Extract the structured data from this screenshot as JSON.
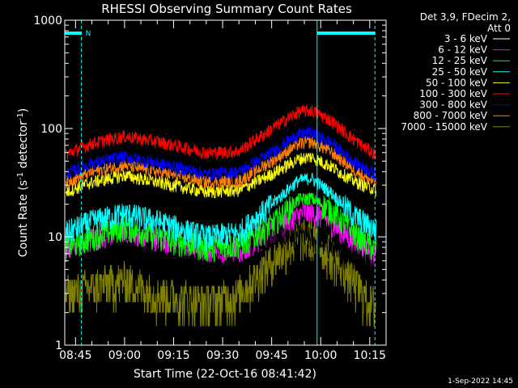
{
  "chart_data": {
    "type": "line",
    "title": "RHESSI Observing Summary Count Rates",
    "xlabel": "Start Time (22-Oct-16 08:41:42)",
    "ylabel_main": "Count Rate (s",
    "ylabel_sup1": "-1",
    "ylabel_mid": " detector",
    "ylabel_sup2": "-1",
    "ylabel_end": ")",
    "yscale": "log",
    "ylim": [
      1,
      1000
    ],
    "xlim_minutes": [
      -3.3,
      95.0
    ],
    "x_ticks": [
      {
        "label": "08:45",
        "t": 0
      },
      {
        "label": "09:00",
        "t": 15
      },
      {
        "label": "09:15",
        "t": 30
      },
      {
        "label": "09:30",
        "t": 45
      },
      {
        "label": "09:45",
        "t": 60
      },
      {
        "label": "10:00",
        "t": 75
      },
      {
        "label": "10:15",
        "t": 90
      }
    ],
    "y_ticks": [
      {
        "label": "1",
        "v": 1
      },
      {
        "label": "10",
        "v": 10
      },
      {
        "label": "100",
        "v": 100
      },
      {
        "label": "1000",
        "v": 1000
      }
    ],
    "legend_header": [
      "Det 3,9, FDecim 2,",
      "Att 0"
    ],
    "legend_placement": "right",
    "series": [
      {
        "name": "3 - 6 keV",
        "color": "#000000",
        "knots": [
          [
            -3,
            11
          ],
          [
            5,
            12
          ],
          [
            15,
            13
          ],
          [
            30,
            11
          ],
          [
            45,
            9
          ],
          [
            60,
            11
          ],
          [
            70,
            10
          ],
          [
            75,
            9
          ],
          [
            82,
            7
          ],
          [
            90,
            6
          ],
          [
            92,
            5.5
          ]
        ]
      },
      {
        "name": "6 - 12 keV",
        "color": "#ff00ff",
        "knots": [
          [
            -3,
            8.5
          ],
          [
            5,
            10
          ],
          [
            15,
            12
          ],
          [
            25,
            10
          ],
          [
            40,
            8
          ],
          [
            50,
            8
          ],
          [
            60,
            11
          ],
          [
            70,
            17
          ],
          [
            75,
            16
          ],
          [
            82,
            11
          ],
          [
            88,
            8
          ],
          [
            92,
            6.5
          ]
        ]
      },
      {
        "name": "12 - 25 keV",
        "color": "#00ff00",
        "knots": [
          [
            -3,
            8
          ],
          [
            5,
            10
          ],
          [
            15,
            12.5
          ],
          [
            25,
            10
          ],
          [
            40,
            8
          ],
          [
            50,
            8.5
          ],
          [
            60,
            13
          ],
          [
            68,
            22
          ],
          [
            72,
            23
          ],
          [
            78,
            18
          ],
          [
            85,
            11
          ],
          [
            92,
            7.5
          ]
        ]
      },
      {
        "name": "25 - 50 keV",
        "color": "#00ffff",
        "knots": [
          [
            -3,
            11
          ],
          [
            5,
            14
          ],
          [
            15,
            16.5
          ],
          [
            25,
            14
          ],
          [
            40,
            10
          ],
          [
            50,
            11
          ],
          [
            60,
            20
          ],
          [
            68,
            33
          ],
          [
            72,
            35
          ],
          [
            78,
            26
          ],
          [
            85,
            16
          ],
          [
            92,
            11.5
          ]
        ]
      },
      {
        "name": "50 - 100 keV",
        "color": "#ffff00",
        "knots": [
          [
            -3,
            26
          ],
          [
            5,
            32
          ],
          [
            15,
            37
          ],
          [
            25,
            32
          ],
          [
            40,
            26
          ],
          [
            50,
            27
          ],
          [
            60,
            38
          ],
          [
            68,
            52
          ],
          [
            72,
            55
          ],
          [
            78,
            45
          ],
          [
            85,
            33
          ],
          [
            92,
            27
          ]
        ]
      },
      {
        "name": "100 - 300 keV",
        "color": "#ff0000",
        "knots": [
          [
            -3,
            58
          ],
          [
            5,
            73
          ],
          [
            15,
            85
          ],
          [
            25,
            76
          ],
          [
            40,
            60
          ],
          [
            50,
            62
          ],
          [
            60,
            100
          ],
          [
            68,
            142
          ],
          [
            72,
            148
          ],
          [
            78,
            120
          ],
          [
            85,
            80
          ],
          [
            92,
            57
          ]
        ]
      },
      {
        "name": "300 - 800 keV",
        "color": "#0000ff",
        "knots": [
          [
            -3,
            38
          ],
          [
            5,
            48
          ],
          [
            15,
            55
          ],
          [
            25,
            48
          ],
          [
            40,
            38
          ],
          [
            50,
            40
          ],
          [
            60,
            60
          ],
          [
            68,
            88
          ],
          [
            72,
            92
          ],
          [
            78,
            75
          ],
          [
            85,
            50
          ],
          [
            92,
            37
          ]
        ]
      },
      {
        "name": "800 - 7000 keV",
        "color": "#ff8000",
        "knots": [
          [
            -3,
            32
          ],
          [
            5,
            40
          ],
          [
            15,
            46
          ],
          [
            25,
            40
          ],
          [
            40,
            32
          ],
          [
            50,
            33
          ],
          [
            60,
            50
          ],
          [
            68,
            72
          ],
          [
            72,
            76
          ],
          [
            78,
            62
          ],
          [
            85,
            42
          ],
          [
            92,
            31
          ]
        ]
      },
      {
        "name": "7000 - 15000 keV",
        "color": "#808000",
        "knots": [
          [
            -3,
            3
          ],
          [
            5,
            3.5
          ],
          [
            15,
            4
          ],
          [
            25,
            3
          ],
          [
            40,
            2.5
          ],
          [
            50,
            3
          ],
          [
            60,
            6
          ],
          [
            68,
            10
          ],
          [
            72,
            10
          ],
          [
            78,
            7
          ],
          [
            85,
            4
          ],
          [
            90,
            2.5
          ],
          [
            92,
            2.3
          ]
        ]
      }
    ],
    "markers": [
      {
        "t": -3.3,
        "style": "solid"
      },
      {
        "t": 1.8,
        "style": "dashed"
      },
      {
        "t": 73.9,
        "style": "solid"
      },
      {
        "t": 91.6,
        "style": "dashed"
      }
    ],
    "night_bars": [
      {
        "t0": -3.3,
        "t1": 1.8,
        "label": "N"
      },
      {
        "t0": 73.9,
        "t1": 91.6,
        "label": ""
      }
    ],
    "marker_color": "#00ffff",
    "timestamp": "1-Sep-2022 14:45"
  }
}
